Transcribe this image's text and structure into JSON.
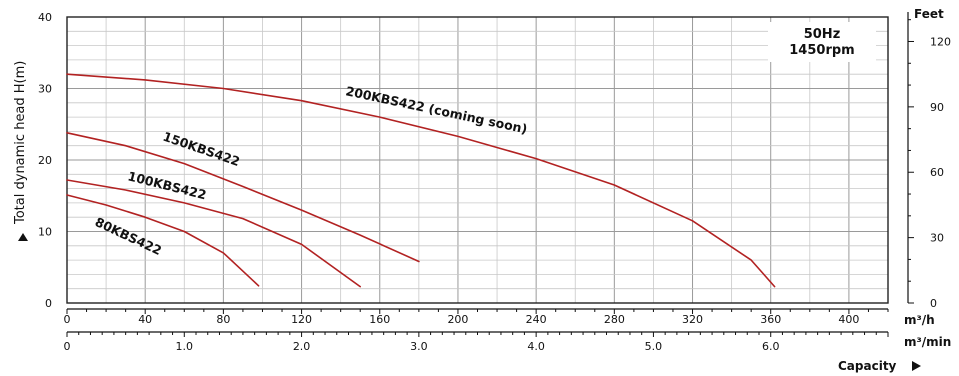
{
  "chart_data": {
    "type": "line",
    "ylabel": "Total dynamic head H(m)",
    "ylim": [
      0,
      40
    ],
    "yticks": [
      0,
      10,
      20,
      30,
      40
    ],
    "right_axis": {
      "unit_label": "Feet",
      "ticks": [
        0,
        30,
        60,
        90,
        120
      ]
    },
    "x_axis_m3h": {
      "unit_label": "m³/h",
      "xlim": [
        0,
        420
      ],
      "ticks": [
        0,
        40,
        80,
        120,
        160,
        200,
        240,
        280,
        320,
        360,
        400
      ]
    },
    "x_axis_m3min": {
      "unit_label": "m³/min",
      "ticks": [
        "0",
        "1.0",
        "2.0",
        "3.0",
        "4.0",
        "5.0",
        "6.0"
      ]
    },
    "xlabel": "Capacity",
    "grid": true,
    "annotation": [
      "50Hz",
      "1450rpm"
    ],
    "line_color": "#b22222",
    "series": [
      {
        "name": "200KBS422 (coming soon)",
        "x": [
          0,
          40,
          80,
          120,
          160,
          200,
          240,
          280,
          320,
          350,
          362
        ],
        "y": [
          32,
          31.2,
          30,
          28.3,
          26,
          23.3,
          20.2,
          16.5,
          11.5,
          6,
          2.3
        ]
      },
      {
        "name": "150KBS422",
        "x": [
          0,
          30,
          60,
          90,
          120,
          150,
          180
        ],
        "y": [
          23.8,
          22,
          19.5,
          16.3,
          13,
          9.5,
          5.8
        ]
      },
      {
        "name": "100KBS422",
        "x": [
          0,
          30,
          60,
          90,
          120,
          150
        ],
        "y": [
          17.2,
          15.8,
          14,
          11.8,
          8.2,
          2.3
        ]
      },
      {
        "name": "80KBS422",
        "x": [
          0,
          20,
          40,
          60,
          80,
          98
        ],
        "y": [
          15.1,
          13.7,
          12,
          10,
          7,
          2.4
        ]
      }
    ]
  }
}
